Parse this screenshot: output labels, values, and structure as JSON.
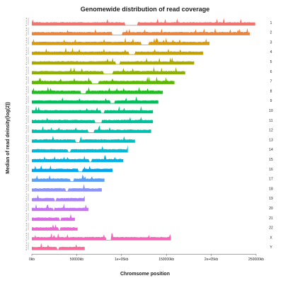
{
  "chart_data": {
    "type": "area",
    "title": "Genomewide distribution of read coverage",
    "xlabel": "Chromsome position",
    "ylabel": "Median of read deinsity(log(2))",
    "xlim": [
      0,
      250000
    ],
    "x_unit": "kb",
    "x_ticks": [
      {
        "value": 0,
        "label": "0kb"
      },
      {
        "value": 50000,
        "label": "50000kb"
      },
      {
        "value": 100000,
        "label": "1e+05kb"
      },
      {
        "value": 150000,
        "label": "150000kb"
      },
      {
        "value": 200000,
        "label": "2e+05kb"
      },
      {
        "value": 250000,
        "label": "250000kb"
      }
    ],
    "track_y_ticks": [
      "0",
      "1",
      "2",
      "3"
    ],
    "tracks": [
      {
        "name": "1",
        "length": 249000,
        "color": "#f0736e"
      },
      {
        "name": "2",
        "length": 243000,
        "color": "#e9843f"
      },
      {
        "name": "3",
        "length": 198000,
        "color": "#d69a10"
      },
      {
        "name": "4",
        "length": 191000,
        "color": "#c2a100"
      },
      {
        "name": "5",
        "length": 181000,
        "color": "#a8a800"
      },
      {
        "name": "6",
        "length": 171000,
        "color": "#8caf00"
      },
      {
        "name": "7",
        "length": 159000,
        "color": "#5db700"
      },
      {
        "name": "8",
        "length": 146000,
        "color": "#1fbd1f"
      },
      {
        "name": "9",
        "length": 141000,
        "color": "#00bd5c"
      },
      {
        "name": "10",
        "length": 135000,
        "color": "#00c07f"
      },
      {
        "name": "11",
        "length": 135000,
        "color": "#00c09a"
      },
      {
        "name": "12",
        "length": 133000,
        "color": "#00bfae"
      },
      {
        "name": "13",
        "length": 115000,
        "color": "#00bdc2"
      },
      {
        "name": "14",
        "length": 107000,
        "color": "#00b9d6"
      },
      {
        "name": "15",
        "length": 102000,
        "color": "#00b0e6"
      },
      {
        "name": "16",
        "length": 90000,
        "color": "#00a5f0"
      },
      {
        "name": "17",
        "length": 81000,
        "color": "#5b9ef5"
      },
      {
        "name": "18",
        "length": 78000,
        "color": "#8b93f8"
      },
      {
        "name": "19",
        "length": 59000,
        "color": "#a982f8"
      },
      {
        "name": "20",
        "length": 63000,
        "color": "#c574f2"
      },
      {
        "name": "21",
        "length": 48000,
        "color": "#db6ae6"
      },
      {
        "name": "22",
        "length": 51000,
        "color": "#ea67d4"
      },
      {
        "name": "X",
        "length": 155000,
        "color": "#f467b8"
      },
      {
        "name": "Y",
        "length": 59000,
        "color": "#f66b98"
      }
    ]
  }
}
